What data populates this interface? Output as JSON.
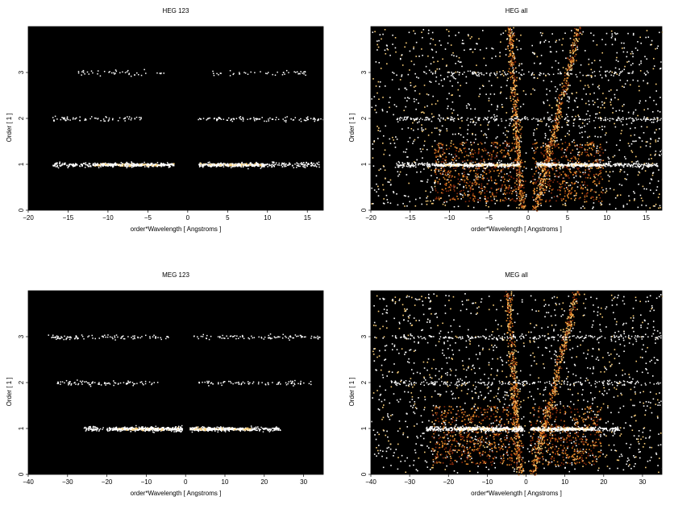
{
  "chart_data": [
    {
      "type": "heatmap",
      "title": "HEG 123",
      "xlabel": "order*Wavelength [ Angstroms ]",
      "ylabel": "Order [ 1 ]",
      "xlim": [
        -20,
        17
      ],
      "ylim": [
        0,
        4
      ],
      "xticks": [
        -20,
        -15,
        -10,
        -5,
        0,
        5,
        10,
        15
      ],
      "yticks": [
        0,
        1,
        2,
        3
      ],
      "bands": [
        {
          "order": 1,
          "x_range": [
            -17,
            16.5
          ],
          "core": [
            -12,
            9.5
          ],
          "gap": [
            -1.8,
            1.3
          ],
          "intensity": "high"
        },
        {
          "order": 2,
          "x_range": [
            -17,
            17
          ],
          "gap": [
            -5.5,
            1.0
          ],
          "intensity": "medium"
        },
        {
          "order": 3,
          "x_range": [
            -14,
            15.5
          ],
          "gap": [
            -3.0,
            3.0
          ],
          "intensity": "low"
        }
      ]
    },
    {
      "type": "heatmap",
      "title": "HEG all",
      "xlabel": "order*Wavelength [ Angstroms ]",
      "ylabel": "Order [ 1 ]",
      "xlim": [
        -20,
        17
      ],
      "ylim": [
        0,
        4
      ],
      "xticks": [
        -20,
        -15,
        -10,
        -5,
        0,
        5,
        10,
        15
      ],
      "yticks": [
        0,
        1,
        2,
        3
      ],
      "bands": [
        {
          "order": 1,
          "x_range": [
            -17,
            16.5
          ],
          "core": [
            -12,
            9.5
          ],
          "gap": [
            -1.2,
            1.0
          ],
          "intensity": "high"
        },
        {
          "order": 2,
          "x_range": [
            -17,
            17
          ],
          "intensity": "medium"
        },
        {
          "order": 3,
          "x_range": [
            -14,
            15.5
          ],
          "intensity": "low"
        }
      ]
    },
    {
      "type": "heatmap",
      "title": "MEG 123",
      "xlabel": "order*Wavelength [ Angstroms ]",
      "ylabel": "Order [ 1 ]",
      "xlim": [
        -40,
        35
      ],
      "ylim": [
        0,
        4
      ],
      "xticks": [
        -40,
        -30,
        -20,
        -10,
        0,
        10,
        20,
        30
      ],
      "yticks": [
        0,
        1,
        2,
        3
      ],
      "bands": [
        {
          "order": 1,
          "x_range": [
            -26,
            24
          ],
          "core": [
            -18,
            17
          ],
          "gap": [
            -1.0,
            1.0
          ],
          "intensity": "high"
        },
        {
          "order": 2,
          "x_range": [
            -33,
            32
          ],
          "gap": [
            -7.0,
            3.0
          ],
          "intensity": "medium"
        },
        {
          "order": 3,
          "x_range": [
            -35,
            34
          ],
          "gap": [
            -4.0,
            2.0
          ],
          "intensity": "medium"
        }
      ]
    },
    {
      "type": "heatmap",
      "title": "MEG all",
      "xlabel": "order*Wavelength [ Angstroms ]",
      "ylabel": "Order [ 1 ]",
      "xlim": [
        -40,
        35
      ],
      "ylim": [
        0,
        4
      ],
      "xticks": [
        -40,
        -30,
        -20,
        -10,
        0,
        10,
        20,
        30
      ],
      "yticks": [
        0,
        1,
        2,
        3
      ],
      "bands": [
        {
          "order": 1,
          "x_range": [
            -26,
            24
          ],
          "core": [
            -18,
            17
          ],
          "gap": [
            -1.0,
            1.0
          ],
          "intensity": "high"
        },
        {
          "order": 2,
          "x_range": [
            -35,
            35
          ],
          "intensity": "medium"
        },
        {
          "order": 3,
          "x_range": [
            -35,
            35
          ],
          "intensity": "medium"
        }
      ]
    }
  ],
  "colors": {
    "background": "#000000",
    "band_core": "#ffffff",
    "heat_hot": "#ffd27a",
    "heat_mid": "#e88a2a",
    "heat_low": "#8a2a0a"
  }
}
